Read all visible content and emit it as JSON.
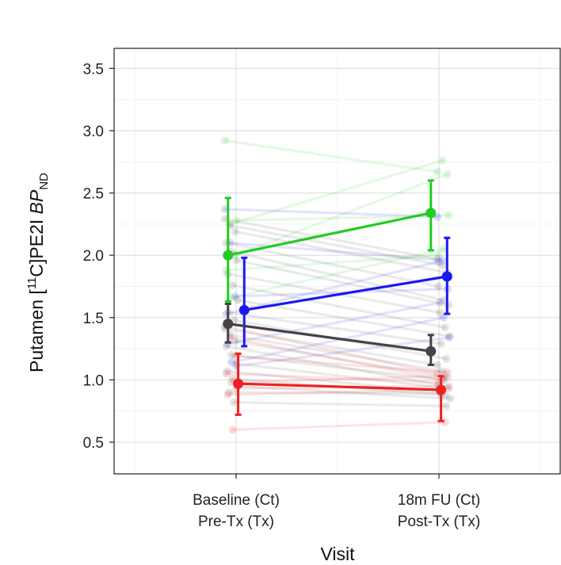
{
  "chart_data": {
    "type": "line",
    "xlabel": "Visit",
    "ylabel": {
      "prefix": "Putamen [",
      "sup": "11",
      "mid": "C]PE2I ",
      "italic": "BP",
      "sub": "ND"
    },
    "categories": [
      {
        "line1": "Baseline (Ct)",
        "line2": "Pre-Tx (Tx)"
      },
      {
        "line1": "18m FU (Ct)",
        "line2": "Post-Tx (Tx)"
      }
    ],
    "ylim": [
      0.25,
      3.65
    ],
    "yticks": [
      "0.5",
      "1.0",
      "1.5",
      "2.0",
      "2.5",
      "3.0",
      "3.5"
    ],
    "grid": true,
    "summary_series": [
      {
        "color": "#22cc22",
        "offset": -0.04,
        "mean": [
          2.0,
          2.34
        ],
        "lower": [
          1.63,
          2.04
        ],
        "upper": [
          2.46,
          2.6
        ]
      },
      {
        "color": "#1a1aee",
        "offset": 0.04,
        "mean": [
          1.56,
          1.83
        ],
        "lower": [
          1.27,
          1.53
        ],
        "upper": [
          1.98,
          2.14
        ]
      },
      {
        "color": "#444444",
        "offset": -0.04,
        "mean": [
          1.45,
          1.23
        ],
        "lower": [
          1.3,
          1.12
        ],
        "upper": [
          1.61,
          1.36
        ]
      },
      {
        "color": "#ee2222",
        "offset": 0.01,
        "mean": [
          0.97,
          0.92
        ],
        "lower": [
          0.72,
          0.67
        ],
        "upper": [
          1.21,
          1.03
        ]
      }
    ],
    "individual_series": [
      {
        "color": "#22cc22",
        "values": [
          [
            2.92,
            2.67
          ],
          [
            2.25,
            2.76
          ],
          [
            2.0,
            2.65
          ],
          [
            1.88,
            2.0
          ],
          [
            1.66,
            2.05
          ],
          [
            2.28,
            2.32
          ]
        ]
      },
      {
        "color": "#1a1aee",
        "values": [
          [
            2.37,
            2.31
          ],
          [
            2.1,
            1.96
          ],
          [
            1.67,
            1.73
          ],
          [
            1.53,
            1.95
          ],
          [
            1.14,
            1.5
          ],
          [
            1.11,
            1.34
          ],
          [
            1.29,
            1.62
          ]
        ]
      },
      {
        "color": "#555555",
        "values": [
          [
            2.29,
            1.97
          ],
          [
            2.24,
            1.92
          ],
          [
            2.19,
            1.86
          ],
          [
            2.1,
            1.75
          ],
          [
            2.03,
            1.64
          ],
          [
            1.96,
            1.6
          ],
          [
            1.85,
            1.54
          ],
          [
            1.76,
            1.42
          ],
          [
            1.64,
            1.35
          ],
          [
            1.54,
            1.29
          ],
          [
            1.48,
            1.17
          ],
          [
            1.41,
            1.12
          ],
          [
            1.36,
            1.07
          ],
          [
            1.31,
            1.02
          ],
          [
            1.27,
            0.96
          ],
          [
            1.2,
            1.0
          ],
          [
            1.13,
            0.93
          ],
          [
            1.07,
            0.9
          ],
          [
            1.01,
            0.88
          ],
          [
            0.95,
            0.85
          ],
          [
            0.9,
            0.89
          ],
          [
            0.82,
            0.79
          ]
        ]
      },
      {
        "color": "#ee2222",
        "values": [
          [
            1.43,
            1.05
          ],
          [
            1.34,
            1.0
          ],
          [
            1.19,
            1.06
          ],
          [
            1.05,
            0.98
          ],
          [
            0.98,
            1.03
          ],
          [
            0.93,
            0.95
          ],
          [
            0.88,
            0.92
          ],
          [
            0.6,
            0.66
          ]
        ]
      }
    ]
  }
}
